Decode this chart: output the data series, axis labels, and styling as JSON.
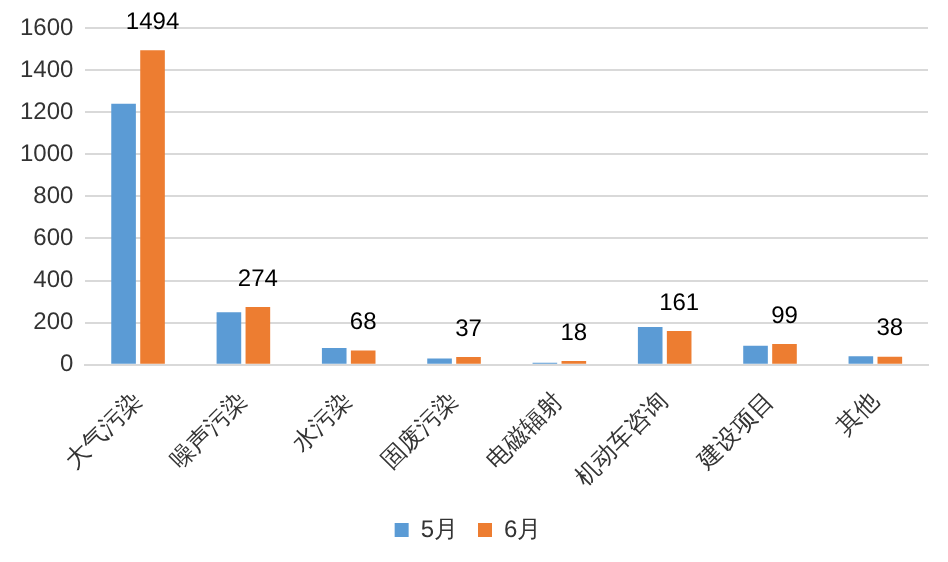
{
  "chart_data": {
    "type": "bar",
    "categories": [
      "大气污染",
      "噪声污染",
      "水污染",
      "固废污染",
      "电磁辐射",
      "机动车咨询",
      "建设项目",
      "其他"
    ],
    "series": [
      {
        "name": "5月",
        "color": "#5b9bd5",
        "values": [
          1240,
          250,
          80,
          30,
          10,
          180,
          90,
          40
        ]
      },
      {
        "name": "6月",
        "color": "#ed7d31",
        "values": [
          1494,
          274,
          68,
          37,
          18,
          161,
          99,
          38
        ],
        "value_labels": [
          "1494",
          "274",
          "68",
          "37",
          "18",
          "161",
          "99",
          "38"
        ]
      }
    ],
    "ylim": [
      0,
      1600
    ],
    "yticks": [
      0,
      200,
      400,
      600,
      800,
      1000,
      1200,
      1400,
      1600
    ],
    "grid": "y",
    "legend": "bottom"
  }
}
